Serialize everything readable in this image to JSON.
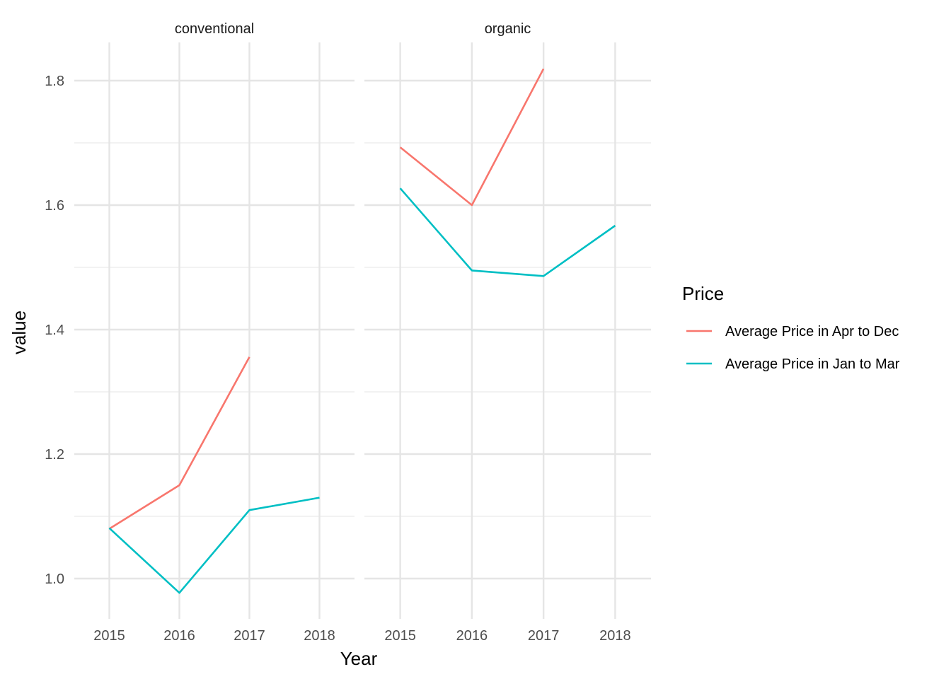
{
  "chart_data": {
    "type": "line",
    "xlabel": "Year",
    "ylabel": "value",
    "ylim": [
      0.94,
      1.86
    ],
    "y_ticks": [
      "1.0",
      "1.2",
      "1.4",
      "1.6",
      "1.8"
    ],
    "x_ticks": [
      "2015",
      "2016",
      "2017",
      "2018"
    ],
    "grid": true,
    "legend": {
      "title": "Price",
      "placement": "right",
      "entries": [
        "Average Price in Apr to Dec",
        "Average Price in Jan to Mar"
      ]
    },
    "colors": {
      "apr_dec": "#F8766D",
      "jan_mar": "#00BFC4"
    },
    "panels": [
      {
        "title": "conventional",
        "series": [
          {
            "name": "Average Price in Apr to Dec",
            "x": [
              2015,
              2016,
              2017
            ],
            "values": [
              1.08,
              1.15,
              1.356
            ]
          },
          {
            "name": "Average Price in Jan to Mar",
            "x": [
              2015,
              2016,
              2017,
              2018
            ],
            "values": [
              1.081,
              0.977,
              1.11,
              1.13
            ]
          }
        ]
      },
      {
        "title": "organic",
        "series": [
          {
            "name": "Average Price in Apr to Dec",
            "x": [
              2015,
              2016,
              2017
            ],
            "values": [
              1.693,
              1.6,
              1.819
            ]
          },
          {
            "name": "Average Price in Jan to Mar",
            "x": [
              2015,
              2016,
              2017,
              2018
            ],
            "values": [
              1.627,
              1.495,
              1.486,
              1.567
            ]
          }
        ]
      }
    ]
  }
}
